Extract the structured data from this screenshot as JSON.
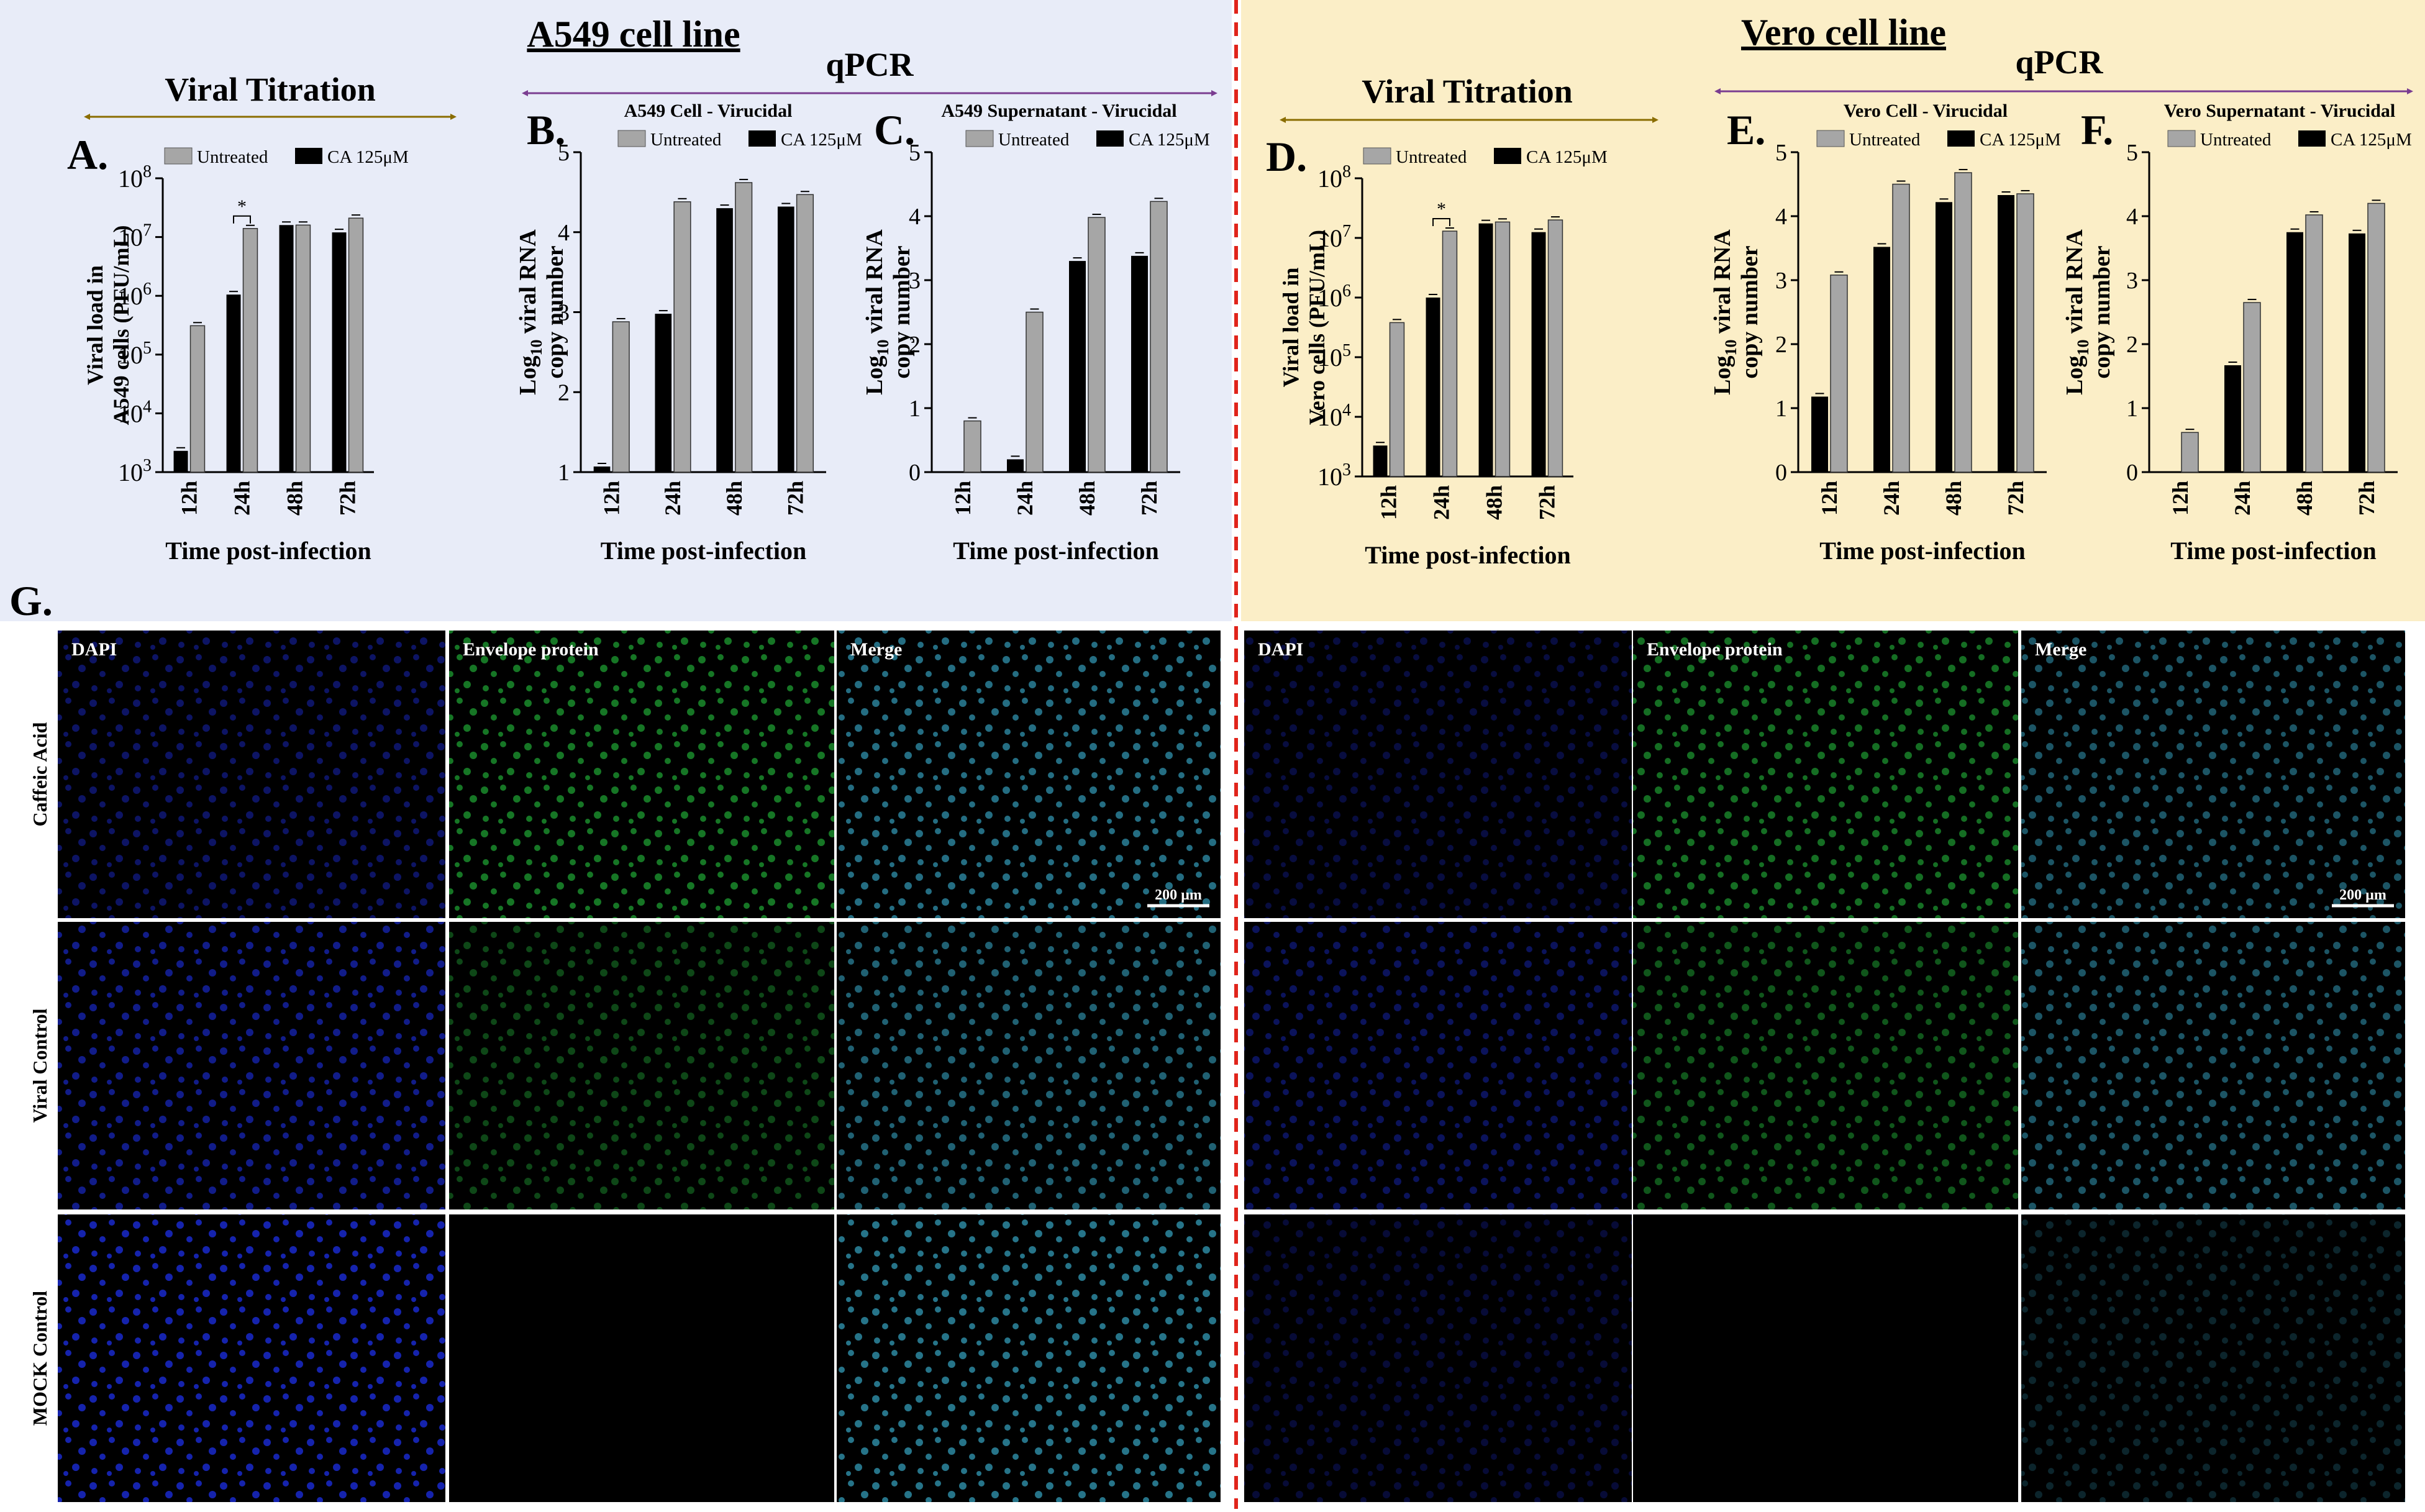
{
  "colors": {
    "left_bg": "#e8ecf8",
    "right_bg": "#fbeec7",
    "divider": "#e0241b",
    "untreated": "#a6a6a6",
    "treated": "#000000",
    "titration_arrow": "#8a6d00",
    "qpcr_arrow": "#7a3d91",
    "dapi": "#1a2bd6",
    "envelope": "#22b83a",
    "merge": "#2f8faa"
  },
  "sections": {
    "left": {
      "title": "A549 cell line",
      "titration_label": "Viral Titration",
      "qpcr_label": "qPCR"
    },
    "right": {
      "title": "Vero cell line",
      "titration_label": "Viral Titration",
      "qpcr_label": "qPCR"
    }
  },
  "legend": {
    "untreated": "Untreated",
    "treated": "CA 125μM"
  },
  "chart_data": [
    {
      "panel": "A.",
      "type": "bar",
      "title": "",
      "categories": [
        "12h",
        "24h",
        "48h",
        "72h"
      ],
      "xlabel": "Time post-infection",
      "ylabel": [
        "Viral load in",
        "A549 cells (PFU/mL)"
      ],
      "yscale": "log",
      "ylim": [
        1000,
        100000000
      ],
      "yticks": [
        1000,
        10000,
        100000,
        1000000,
        10000000,
        100000000
      ],
      "series": [
        {
          "name": "CA 125μM",
          "values": [
            2300,
            1050000,
            16000000,
            12000000
          ]
        },
        {
          "name": "Untreated",
          "values": [
            310000,
            14000000,
            16000000,
            21000000
          ]
        }
      ],
      "significance": [
        {
          "category": "24h",
          "label": "*"
        }
      ],
      "legend": "top"
    },
    {
      "panel": "B.",
      "type": "bar",
      "title": "A549 Cell - Virucidal",
      "categories": [
        "12h",
        "24h",
        "48h",
        "72h"
      ],
      "xlabel": "Time post-infection",
      "ylabel": [
        "Log",
        "10",
        " viral RNA",
        "copy number"
      ],
      "yscale": "linear",
      "ylim": [
        1,
        5
      ],
      "yticks": [
        1,
        2,
        3,
        4,
        5
      ],
      "series": [
        {
          "name": "CA 125μM",
          "values": [
            1.07,
            2.98,
            4.3,
            4.32
          ]
        },
        {
          "name": "Untreated",
          "values": [
            2.88,
            4.38,
            4.62,
            4.47
          ]
        }
      ],
      "legend": "top"
    },
    {
      "panel": "C.",
      "type": "bar",
      "title": "A549 Supernatant - Virucidal",
      "categories": [
        "12h",
        "24h",
        "48h",
        "72h"
      ],
      "xlabel": "Time post-infection",
      "ylabel": [
        "Log",
        "10",
        " viral RNA",
        "copy number"
      ],
      "yscale": "linear",
      "ylim": [
        0,
        5
      ],
      "yticks": [
        0,
        1,
        2,
        3,
        4,
        5
      ],
      "series": [
        {
          "name": "CA 125μM",
          "values": [
            0,
            0.2,
            3.3,
            3.38
          ]
        },
        {
          "name": "Untreated",
          "values": [
            0.8,
            2.5,
            3.98,
            4.23
          ]
        }
      ],
      "legend": "top"
    },
    {
      "panel": "D.",
      "type": "bar",
      "title": "",
      "categories": [
        "12h",
        "24h",
        "48h",
        "72h"
      ],
      "xlabel": "Time post-infection",
      "ylabel": [
        "Viral load in",
        "Vero cells (PFU/mL)"
      ],
      "yscale": "log",
      "ylim": [
        1000,
        100000000
      ],
      "yticks": [
        1000,
        10000,
        100000,
        1000000,
        10000000,
        100000000
      ],
      "series": [
        {
          "name": "CA 125μM",
          "values": [
            3300,
            1000000,
            17500000,
            12500000
          ]
        },
        {
          "name": "Untreated",
          "values": [
            380000,
            13000000,
            18500000,
            20000000
          ]
        }
      ],
      "significance": [
        {
          "category": "24h",
          "label": "*"
        }
      ],
      "legend": "top"
    },
    {
      "panel": "E.",
      "type": "bar",
      "title": "Vero Cell - Virucidal",
      "categories": [
        "12h",
        "24h",
        "48h",
        "72h"
      ],
      "xlabel": "Time post-infection",
      "ylabel": [
        "Log",
        "10",
        " viral RNA",
        "copy number"
      ],
      "yscale": "linear",
      "ylim": [
        0,
        5
      ],
      "yticks": [
        0,
        1,
        2,
        3,
        4,
        5
      ],
      "series": [
        {
          "name": "CA 125μM",
          "values": [
            1.18,
            3.52,
            4.22,
            4.33
          ]
        },
        {
          "name": "Untreated",
          "values": [
            3.08,
            4.5,
            4.68,
            4.35
          ]
        }
      ],
      "legend": "top"
    },
    {
      "panel": "F.",
      "type": "bar",
      "title": "Vero Supernatant - Virucidal",
      "categories": [
        "12h",
        "24h",
        "48h",
        "72h"
      ],
      "xlabel": "Time post-infection",
      "ylabel": [
        "Log",
        "10",
        " viral RNA",
        "copy number"
      ],
      "yscale": "linear",
      "ylim": [
        0,
        5
      ],
      "yticks": [
        0,
        1,
        2,
        3,
        4,
        5
      ],
      "series": [
        {
          "name": "CA 125μM",
          "values": [
            0,
            1.67,
            3.75,
            3.73
          ]
        },
        {
          "name": "Untreated",
          "values": [
            0.62,
            2.65,
            4.02,
            4.2
          ]
        }
      ],
      "legend": "top"
    }
  ],
  "microscopy": {
    "panel_label": "G.",
    "columns": [
      "DAPI",
      "Envelope protein",
      "Merge"
    ],
    "rows": [
      "Caffeic Acid",
      "Viral Control",
      "MOCK Control"
    ],
    "scale_bar": "200 µm",
    "groups": [
      {
        "side": "left",
        "levels": [
          [
            0.55,
            0.75,
            0.9
          ],
          [
            0.75,
            0.45,
            0.8
          ],
          [
            0.95,
            0.0,
            0.95
          ]
        ]
      },
      {
        "side": "right",
        "levels": [
          [
            0.35,
            0.7,
            0.7
          ],
          [
            0.5,
            0.55,
            0.7
          ],
          [
            0.3,
            0.0,
            0.3
          ]
        ]
      }
    ]
  }
}
